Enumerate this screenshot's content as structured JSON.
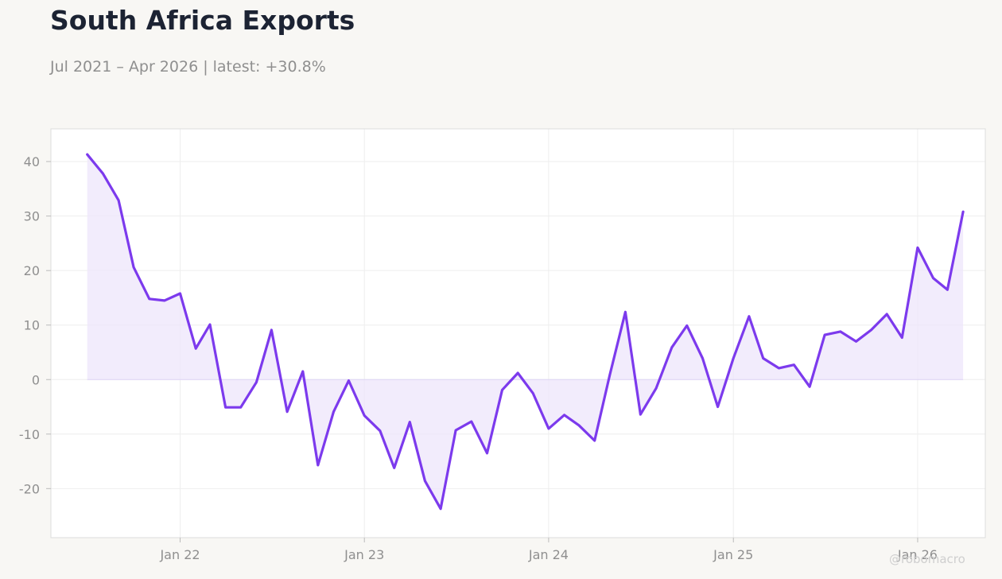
{
  "header": {
    "title": "South Africa Exports",
    "subtitle": "Jul 2021 – Apr 2026 | latest: +30.8%"
  },
  "watermark": "@robomacro",
  "colors": {
    "background": "#f8f7f4",
    "plot_background": "#ffffff",
    "line": "#7c3aed",
    "fill": "#ede6fb",
    "grid": "#eeeeee",
    "axis_border": "#dddddd",
    "text_muted": "#8f8f8f",
    "title": "#1c2333"
  },
  "chart_data": {
    "type": "area",
    "title": "South Africa Exports",
    "subtitle": "Jul 2021 – Apr 2026 | latest: +30.8%",
    "xlabel": "",
    "ylabel": "",
    "grid": true,
    "ylim": [
      -29,
      46
    ],
    "xlim": [
      "2021-04-20",
      "2026-05-15"
    ],
    "x_ticks": [
      {
        "date": "2022-01-01",
        "label": "Jan 22"
      },
      {
        "date": "2023-01-01",
        "label": "Jan 23"
      },
      {
        "date": "2024-01-01",
        "label": "Jan 24"
      },
      {
        "date": "2025-01-01",
        "label": "Jan 25"
      },
      {
        "date": "2026-01-01",
        "label": "Jan 26"
      }
    ],
    "y_ticks": [
      -20,
      -10,
      0,
      10,
      20,
      30,
      40
    ],
    "series": [
      {
        "x": [
          "2021-07",
          "2021-08",
          "2021-09",
          "2021-10",
          "2021-11",
          "2021-12",
          "2022-01",
          "2022-02",
          "2022-03",
          "2022-04",
          "2022-05",
          "2022-06",
          "2022-07",
          "2022-08",
          "2022-09",
          "2022-10",
          "2022-11",
          "2022-12",
          "2023-01",
          "2023-02",
          "2023-03",
          "2023-04",
          "2023-05",
          "2023-06",
          "2023-07",
          "2023-08",
          "2023-09",
          "2023-10",
          "2023-11",
          "2023-12",
          "2024-01",
          "2024-02",
          "2024-03",
          "2024-04",
          "2024-05",
          "2024-06",
          "2024-07",
          "2024-08",
          "2024-09",
          "2024-10",
          "2024-11",
          "2024-12",
          "2025-01",
          "2025-02",
          "2025-03",
          "2025-04",
          "2025-05",
          "2025-06",
          "2025-07",
          "2025-08",
          "2025-09",
          "2025-10",
          "2025-11",
          "2025-12",
          "2026-01",
          "2026-02",
          "2026-03",
          "2026-04"
        ],
        "y": [
          41.3,
          37.8,
          32.9,
          20.6,
          14.8,
          14.5,
          15.8,
          5.7,
          10.1,
          -5.1,
          -5.1,
          -0.5,
          9.1,
          -5.9,
          1.5,
          -15.7,
          -5.9,
          -0.2,
          -6.6,
          -9.4,
          -16.2,
          -7.8,
          -18.6,
          -23.7,
          -9.3,
          -7.7,
          -13.5,
          -1.9,
          1.2,
          -2.5,
          -9.0,
          -6.5,
          -8.4,
          -11.2,
          0.8,
          12.4,
          -6.4,
          -1.6,
          5.9,
          9.9,
          3.9,
          -5.0,
          3.9,
          11.6,
          3.9,
          2.1,
          2.7,
          -1.3,
          8.2,
          8.8,
          7.0,
          9.1,
          12.0,
          7.7,
          24.2,
          18.6,
          16.5,
          30.8
        ]
      }
    ]
  }
}
